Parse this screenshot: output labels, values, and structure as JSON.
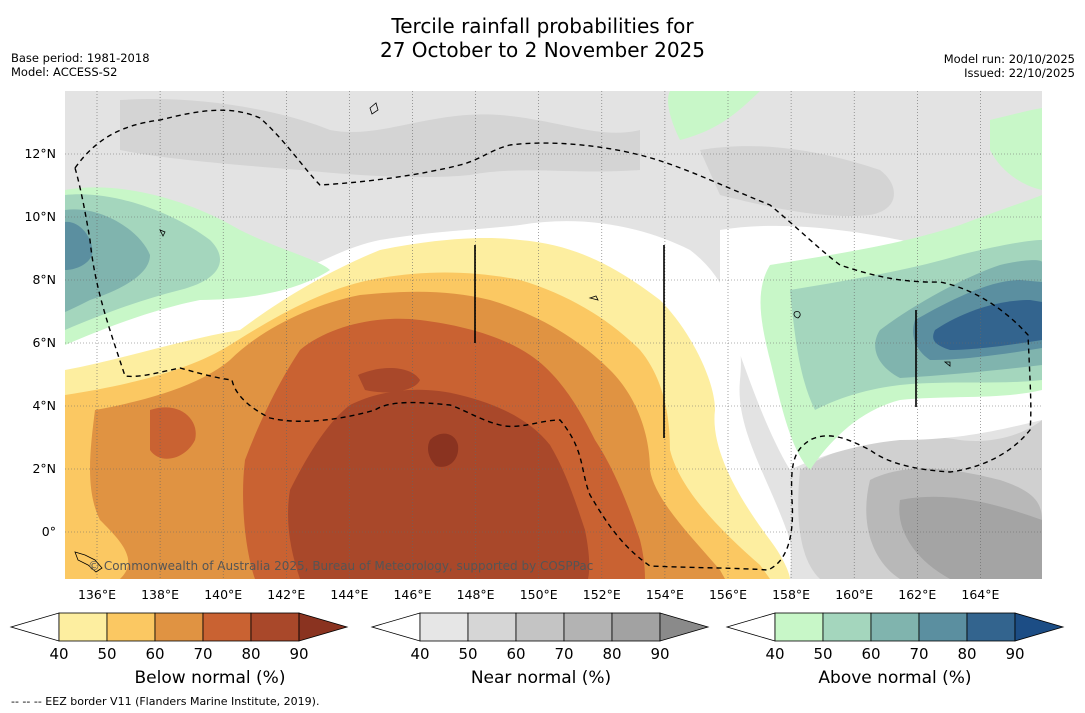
{
  "title_line1": "Tercile rainfall probabilities for",
  "title_line2": "27 October to 2 November 2025",
  "meta_left": {
    "base_period": "Base period: 1981-2018",
    "model": "Model: ACCESS-S2"
  },
  "meta_right": {
    "model_run": "Model run: 20/10/2025",
    "issued": "Issued: 22/10/2025"
  },
  "lat_labels": [
    "12°N",
    "10°N",
    "8°N",
    "6°N",
    "4°N",
    "2°N",
    "0°"
  ],
  "lon_labels": [
    "136°E",
    "138°E",
    "140°E",
    "142°E",
    "144°E",
    "146°E",
    "148°E",
    "150°E",
    "152°E",
    "154°E",
    "156°E",
    "158°E",
    "160°E",
    "162°E",
    "164°E"
  ],
  "credit": "© Commonwealth of Australia 2025, Bureau of Meteorology, supported by COSPPac",
  "colorbars": [
    {
      "title": "Below normal (%)",
      "ticks": [
        "40",
        "50",
        "60",
        "70",
        "80",
        "90"
      ],
      "colors": [
        "#ffffff",
        "#fdeea0",
        "#fbc862",
        "#e09342",
        "#c96232",
        "#a9482a",
        "#8a3320"
      ]
    },
    {
      "title": "Near normal (%)",
      "ticks": [
        "40",
        "50",
        "60",
        "70",
        "80",
        "90"
      ],
      "colors": [
        "#ffffff",
        "#e6e6e6",
        "#d6d6d6",
        "#c4c4c4",
        "#b3b3b3",
        "#a2a2a2",
        "#8a8a8a"
      ]
    },
    {
      "title": "Above normal (%)",
      "ticks": [
        "40",
        "50",
        "60",
        "70",
        "80",
        "90"
      ],
      "colors": [
        "#ffffff",
        "#c8f7c8",
        "#a4d6bd",
        "#80b4ae",
        "#5b8fa0",
        "#33648e",
        "#1c4d85"
      ]
    }
  ],
  "footnote": "--  --  -- EEZ border V11 (Flanders Marine Institute, 2019)."
}
